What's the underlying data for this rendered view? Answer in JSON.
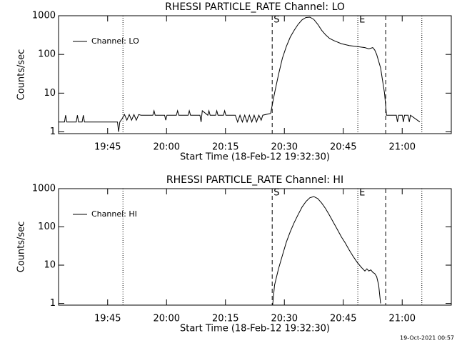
{
  "chart_data": [
    {
      "type": "line",
      "title": "RHESSI PARTICLE_RATE Channel: LO",
      "xlabel": "Start Time (18-Feb-12 19:32:30)",
      "ylabel": "Counts/sec",
      "xlim": [
        0,
        100
      ],
      "xticks": [
        {
          "value": 12.5,
          "label": "19:45"
        },
        {
          "value": 27.5,
          "label": "20:00"
        },
        {
          "value": 42.5,
          "label": "20:15"
        },
        {
          "value": 57.5,
          "label": "20:30"
        },
        {
          "value": 72.5,
          "label": "20:45"
        },
        {
          "value": 87.5,
          "label": "21:00"
        }
      ],
      "ylim": [
        0.9,
        1000
      ],
      "yticks": [
        1,
        10,
        100,
        1000
      ],
      "log_y": true,
      "legend": "upper left",
      "vlines": [
        {
          "x": 16.4,
          "style": "dotted"
        },
        {
          "x": 54.4,
          "style": "dashed"
        },
        {
          "x": 76.2,
          "style": "dotted"
        },
        {
          "x": 83.3,
          "style": "dashed"
        },
        {
          "x": 92.5,
          "style": "dotted"
        }
      ],
      "annotations": [
        {
          "text": "S",
          "x": 54.4
        },
        {
          "text": "E",
          "x": 76.2
        }
      ],
      "x": [
        0,
        1.5,
        1.8,
        2.1,
        4.5,
        4.8,
        5.1,
        6,
        6.3,
        6.6,
        15,
        15.3,
        15.6,
        16.2,
        16.8,
        17.4,
        18,
        18.6,
        19.2,
        19.8,
        20.4,
        21,
        24,
        24.3,
        24.6,
        27,
        27.3,
        27.6,
        30,
        30.3,
        30.6,
        33,
        33.3,
        33.6,
        36,
        36.3,
        36.6,
        38,
        38.3,
        38.6,
        40,
        40.3,
        40.6,
        42,
        42.3,
        42.6,
        45,
        45.6,
        46.2,
        46.8,
        47.4,
        48,
        48.6,
        49.2,
        49.8,
        50.4,
        51,
        51.6,
        52,
        54,
        55,
        56,
        57,
        58,
        59,
        60,
        61,
        62,
        63,
        64,
        65,
        66,
        67,
        68,
        69,
        70,
        72,
        74,
        76,
        78,
        79,
        80,
        80.5,
        81,
        82,
        83,
        83.5,
        84,
        86,
        86.3,
        86.6,
        87.5,
        87.8,
        88.1,
        89,
        89.3,
        89.6,
        92
      ],
      "series": [
        {
          "name": "Channel: LO",
          "color": "#000000",
          "values": [
            1.8,
            1.8,
            2.7,
            1.8,
            1.8,
            2.7,
            1.8,
            1.8,
            2.7,
            1.8,
            1.8,
            1,
            1.8,
            2.2,
            2.8,
            2,
            2.8,
            2,
            2.8,
            2,
            2.8,
            2.7,
            2.7,
            3.5,
            2.7,
            2.7,
            2,
            2.7,
            2.7,
            3.5,
            2.7,
            2.7,
            3.5,
            2.7,
            2.7,
            1.8,
            3.5,
            2.7,
            3.5,
            2.7,
            2.7,
            3.5,
            2.7,
            2.7,
            3.5,
            2.7,
            2.7,
            1.8,
            2.7,
            1.8,
            2.7,
            1.8,
            2.7,
            1.8,
            2.7,
            1.8,
            2.7,
            2,
            2.7,
            3,
            10,
            30,
            80,
            160,
            280,
            420,
            600,
            780,
            900,
            920,
            800,
            600,
            420,
            320,
            260,
            230,
            190,
            170,
            160,
            150,
            140,
            150,
            130,
            100,
            45,
            10,
            2.7,
            2.7,
            2.7,
            1.8,
            2.7,
            2.7,
            1.8,
            2.7,
            2.7,
            1.8,
            2.7,
            1.8
          ]
        }
      ]
    },
    {
      "type": "line",
      "title": "RHESSI PARTICLE_RATE Channel: HI",
      "xlabel": "Start Time (18-Feb-12 19:32:30)",
      "ylabel": "Counts/sec",
      "xlim": [
        0,
        100
      ],
      "xticks": [
        {
          "value": 12.5,
          "label": "19:45"
        },
        {
          "value": 27.5,
          "label": "20:00"
        },
        {
          "value": 42.5,
          "label": "20:15"
        },
        {
          "value": 57.5,
          "label": "20:30"
        },
        {
          "value": 72.5,
          "label": "20:45"
        },
        {
          "value": 87.5,
          "label": "21:00"
        }
      ],
      "ylim": [
        0.9,
        1000
      ],
      "yticks": [
        1,
        10,
        100,
        1000
      ],
      "log_y": true,
      "legend": "upper left",
      "vlines": [
        {
          "x": 16.4,
          "style": "dotted"
        },
        {
          "x": 54.4,
          "style": "dashed"
        },
        {
          "x": 76.2,
          "style": "dotted"
        },
        {
          "x": 83.3,
          "style": "dashed"
        },
        {
          "x": 92.5,
          "style": "dotted"
        }
      ],
      "annotations": [
        {
          "text": "S",
          "x": 54.4
        },
        {
          "text": "E",
          "x": 76.2
        }
      ],
      "x": [
        54.5,
        55,
        56,
        57,
        58,
        59,
        60,
        61,
        62,
        63,
        64,
        65,
        66,
        67,
        68,
        69,
        70,
        71,
        72,
        73,
        74,
        75,
        76,
        77,
        78,
        78.5,
        79,
        79.5,
        80,
        80.5,
        81,
        81.5,
        82
      ],
      "series": [
        {
          "name": "Channel: HI",
          "color": "#000000",
          "values": [
            0.9,
            3,
            8,
            18,
            40,
            75,
            130,
            210,
            330,
            460,
            580,
            620,
            550,
            420,
            300,
            200,
            130,
            85,
            55,
            38,
            25,
            17,
            12,
            9,
            7,
            8,
            7,
            7.5,
            6.5,
            6,
            5,
            3,
            1
          ]
        }
      ]
    }
  ],
  "footer": "19-Oct-2021 00:57"
}
